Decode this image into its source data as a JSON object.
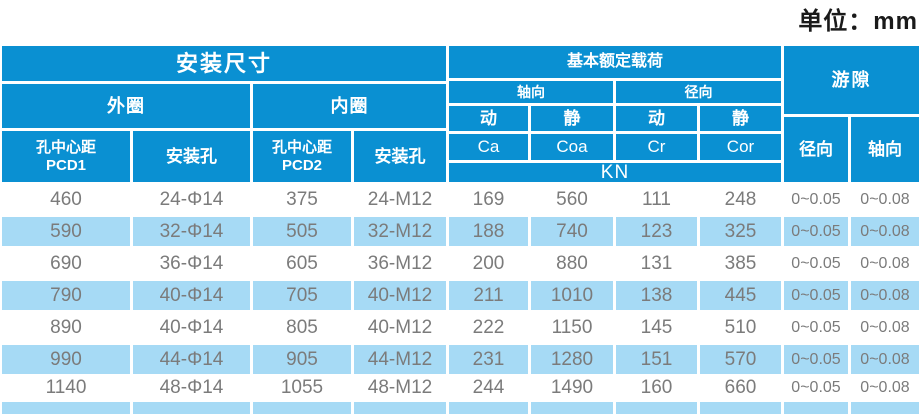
{
  "unit_label": "单位：mm",
  "colors": {
    "header_blue": "#0a90d2",
    "row_blue": "#a6daf5",
    "data_text": "#7b7b7b",
    "header_text": "#ffffff",
    "unit_text": "#1a1a1a"
  },
  "header": {
    "install_title": "安装尺寸",
    "outer_ring": "外圈",
    "inner_ring": "内圈",
    "pcd1_line1": "孔中心距",
    "pcd1_line2": "PCD1",
    "mount_hole_outer": "安装孔",
    "pcd2_line1": "孔中心距",
    "pcd2_line2": "PCD2",
    "mount_hole_inner": "安装孔",
    "load_title": "基本额定载荷",
    "axial_group": "轴向",
    "radial_group": "径向",
    "dynamic_axial": "动",
    "static_axial": "静",
    "dynamic_radial": "动",
    "static_radial": "静",
    "ca": "Ca",
    "coa": "Coa",
    "cr": "Cr",
    "cor": "Cor",
    "kn_unit": "KN",
    "clearance_title": "游隙",
    "clearance_radial": "径向",
    "clearance_axial": "轴向"
  },
  "rows": [
    [
      "460",
      "24-Φ14",
      "375",
      "24-M12",
      "169",
      "560",
      "111",
      "248",
      "0~0.05",
      "0~0.08"
    ],
    [
      "590",
      "32-Φ14",
      "505",
      "32-M12",
      "188",
      "740",
      "123",
      "325",
      "0~0.05",
      "0~0.08"
    ],
    [
      "690",
      "36-Φ14",
      "605",
      "36-M12",
      "200",
      "880",
      "131",
      "385",
      "0~0.05",
      "0~0.08"
    ],
    [
      "790",
      "40-Φ14",
      "705",
      "40-M12",
      "211",
      "1010",
      "138",
      "445",
      "0~0.05",
      "0~0.08"
    ],
    [
      "890",
      "40-Φ14",
      "805",
      "40-M12",
      "222",
      "1150",
      "145",
      "510",
      "0~0.05",
      "0~0.08"
    ],
    [
      "990",
      "44-Φ14",
      "905",
      "44-M12",
      "231",
      "1280",
      "151",
      "570",
      "0~0.05",
      "0~0.08"
    ],
    [
      "1140",
      "48-Φ14",
      "1055",
      "48-M12",
      "244",
      "1490",
      "160",
      "660",
      "0~0.05",
      "0~0.08"
    ]
  ],
  "partial_row": [
    "",
    "",
    "",
    "",
    "",
    "",
    "",
    "",
    "",
    ""
  ]
}
